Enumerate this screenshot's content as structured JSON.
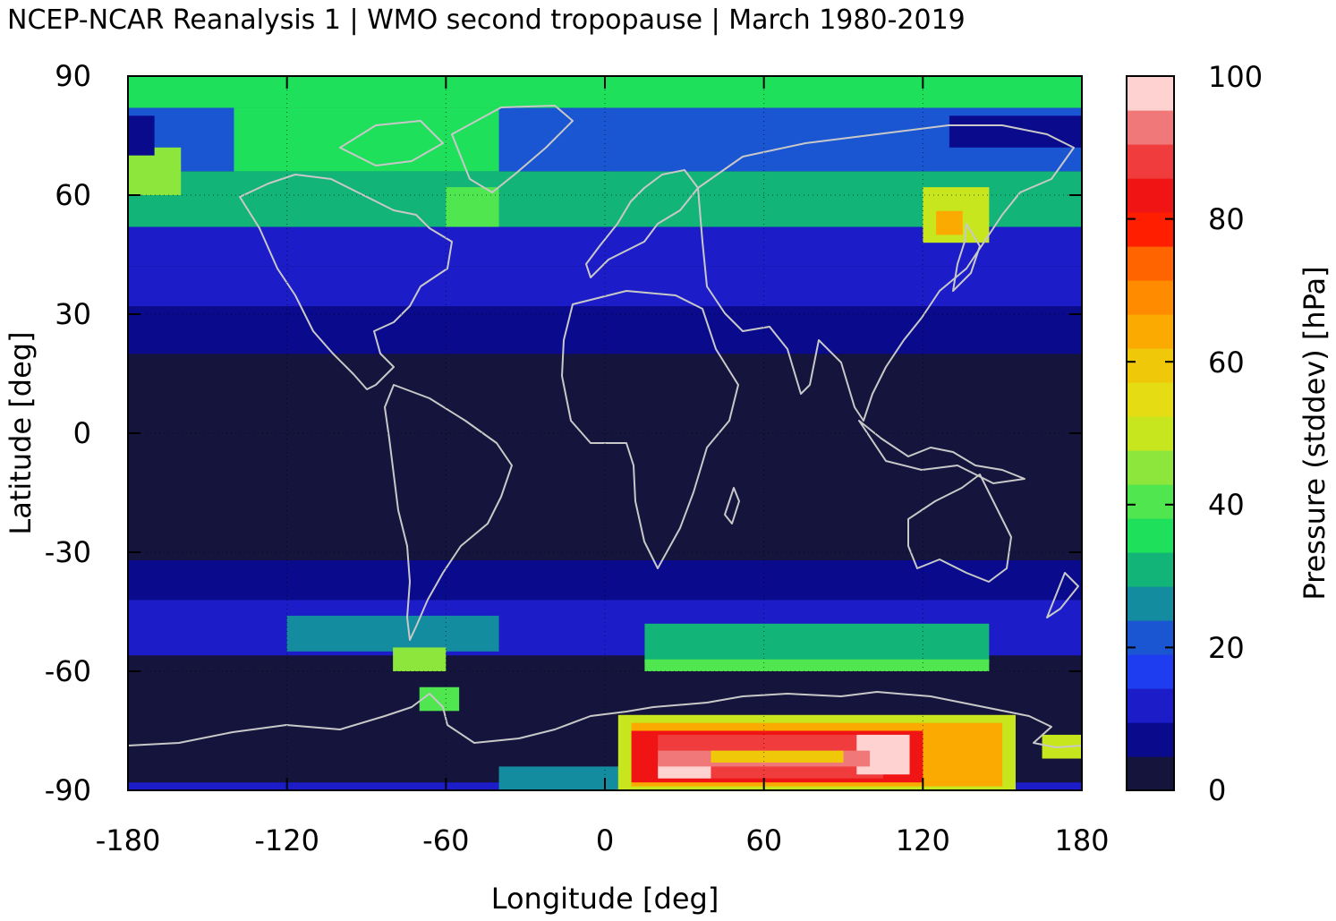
{
  "chart_data": {
    "type": "heatmap",
    "title": "NCEP-NCAR Reanalysis 1 | WMO second tropopause | March 1980-2019",
    "xlabel": "Longitude [deg]",
    "ylabel": "Latitude [deg]",
    "colorbar_label": "Pressure (stddev) [hPa]",
    "xlim": [
      -180,
      180
    ],
    "ylim": [
      -90,
      90
    ],
    "xticks": [
      "-180",
      "-120",
      "-60",
      "0",
      "60",
      "120",
      "180"
    ],
    "xtick_values": [
      -180,
      -120,
      -60,
      0,
      60,
      120,
      180
    ],
    "yticks": [
      "-90",
      "-60",
      "-30",
      "0",
      "30",
      "60",
      "90"
    ],
    "ytick_values": [
      -90,
      -60,
      -30,
      0,
      30,
      60,
      90
    ],
    "colorbar_range": [
      0,
      100
    ],
    "colorbar_ticks": [
      "0",
      "20",
      "40",
      "60",
      "80",
      "100"
    ],
    "colorbar_tick_values": [
      0,
      20,
      40,
      60,
      80,
      100
    ],
    "colorbar_levels": [
      "#14143c",
      "#0a0a8c",
      "#1c1cc8",
      "#1e3cf0",
      "#1a55d2",
      "#148ca0",
      "#12b478",
      "#1ee05a",
      "#50e650",
      "#8ce63c",
      "#c8e61e",
      "#e6dc14",
      "#f0c80a",
      "#faaa00",
      "#ff8c00",
      "#ff6400",
      "#ff1e00",
      "#f01414",
      "#f03c3c",
      "#f07878",
      "#ffd2d2"
    ],
    "grid": true,
    "background_level": "#14143c",
    "zones": [
      {
        "lon": [
          -180,
          180
        ],
        "lat": [
          -90,
          -88
        ],
        "value": 10
      },
      {
        "lon": [
          -180,
          180
        ],
        "lat": [
          -88,
          -70
        ],
        "value": 2
      },
      {
        "lon": [
          -180,
          180
        ],
        "lat": [
          -70,
          -56
        ],
        "value": 3
      },
      {
        "lon": [
          -180,
          180
        ],
        "lat": [
          -56,
          -42
        ],
        "value": 11
      },
      {
        "lon": [
          -180,
          180
        ],
        "lat": [
          -42,
          -32
        ],
        "value": 7
      },
      {
        "lon": [
          -180,
          180
        ],
        "lat": [
          -32,
          20
        ],
        "value": 2
      },
      {
        "lon": [
          -180,
          180
        ],
        "lat": [
          20,
          32
        ],
        "value": 8
      },
      {
        "lon": [
          -180,
          180
        ],
        "lat": [
          32,
          42
        ],
        "value": 10
      },
      {
        "lon": [
          -180,
          180
        ],
        "lat": [
          42,
          52
        ],
        "value": 13
      },
      {
        "lon": [
          -180,
          180
        ],
        "lat": [
          52,
          66
        ],
        "value": 30
      },
      {
        "lon": [
          -180,
          180
        ],
        "lat": [
          66,
          82
        ],
        "value": 22
      },
      {
        "lon": [
          -180,
          180
        ],
        "lat": [
          82,
          90
        ],
        "value": 38
      },
      {
        "lon": [
          -140,
          -40
        ],
        "lat": [
          66,
          82
        ],
        "value": 34
      },
      {
        "lon": [
          -180,
          -160
        ],
        "lat": [
          60,
          72
        ],
        "value": 46
      },
      {
        "lon": [
          -180,
          -170
        ],
        "lat": [
          70,
          80
        ],
        "value": 5
      },
      {
        "lon": [
          130,
          180
        ],
        "lat": [
          72,
          80
        ],
        "value": 6
      },
      {
        "lon": [
          120,
          145
        ],
        "lat": [
          48,
          62
        ],
        "value": 52
      },
      {
        "lon": [
          125,
          135
        ],
        "lat": [
          50,
          56
        ],
        "value": 62
      },
      {
        "lon": [
          -60,
          -40
        ],
        "lat": [
          52,
          62
        ],
        "value": 42
      },
      {
        "lon": [
          -120,
          -40
        ],
        "lat": [
          -55,
          -46
        ],
        "value": 26
      },
      {
        "lon": [
          -80,
          -60
        ],
        "lat": [
          -60,
          -54
        ],
        "value": 44
      },
      {
        "lon": [
          -70,
          -55
        ],
        "lat": [
          -70,
          -64
        ],
        "value": 40
      },
      {
        "lon": [
          15,
          145
        ],
        "lat": [
          -58,
          -48
        ],
        "value": 30
      },
      {
        "lon": [
          15,
          145
        ],
        "lat": [
          -60,
          -57
        ],
        "value": 42
      },
      {
        "lon": [
          -40,
          15
        ],
        "lat": [
          -90,
          -84
        ],
        "value": 28
      },
      {
        "lon": [
          5,
          155
        ],
        "lat": [
          -90,
          -71
        ],
        "value": 48
      },
      {
        "lon": [
          10,
          150
        ],
        "lat": [
          -89,
          -73
        ],
        "value": 62
      },
      {
        "lon": [
          10,
          120
        ],
        "lat": [
          -88,
          -75
        ],
        "value": 82
      },
      {
        "lon": [
          20,
          105
        ],
        "lat": [
          -87,
          -76
        ],
        "value": 90
      },
      {
        "lon": [
          20,
          40
        ],
        "lat": [
          -87,
          -83
        ],
        "value": 98
      },
      {
        "lon": [
          95,
          115
        ],
        "lat": [
          -86,
          -76
        ],
        "value": 98
      },
      {
        "lon": [
          20,
          100
        ],
        "lat": [
          -84,
          -80
        ],
        "value": 95
      },
      {
        "lon": [
          40,
          90
        ],
        "lat": [
          -83,
          -80
        ],
        "value": 60
      },
      {
        "lon": [
          165,
          180
        ],
        "lat": [
          -82,
          -76
        ],
        "value": 50
      }
    ]
  }
}
